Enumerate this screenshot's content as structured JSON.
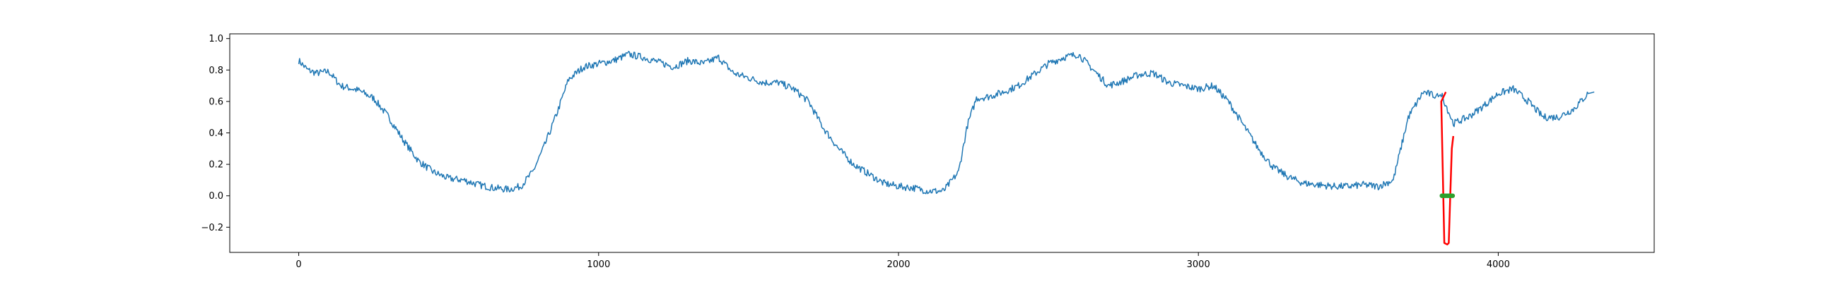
{
  "chart_data": {
    "type": "line",
    "title": "",
    "xlabel": "",
    "ylabel": "",
    "xlim": [
      -230,
      4520
    ],
    "ylim": [
      -0.36,
      1.03
    ],
    "xticks": [
      0,
      1000,
      2000,
      3000,
      4000
    ],
    "xtick_labels": [
      "0",
      "1000",
      "2000",
      "3000",
      "4000"
    ],
    "yticks": [
      -0.2,
      0.0,
      0.2,
      0.4,
      0.6,
      0.8,
      1.0
    ],
    "ytick_labels": [
      "−0.2",
      "0.0",
      "0.2",
      "0.4",
      "0.6",
      "0.8",
      "1.0"
    ],
    "grid": false,
    "legend": "none",
    "series": [
      {
        "color": "#1f77b4",
        "x": [
          0,
          30,
          60,
          100,
          140,
          200,
          250,
          300,
          350,
          400,
          450,
          500,
          550,
          600,
          650,
          700,
          740,
          780,
          820,
          860,
          900,
          950,
          1000,
          1050,
          1100,
          1150,
          1200,
          1250,
          1300,
          1350,
          1400,
          1450,
          1500,
          1550,
          1600,
          1650,
          1700,
          1750,
          1800,
          1850,
          1900,
          1950,
          2000,
          2050,
          2100,
          2150,
          2200,
          2230,
          2260,
          2300,
          2350,
          2400,
          2450,
          2500,
          2550,
          2600,
          2650,
          2700,
          2750,
          2800,
          2850,
          2900,
          2950,
          3000,
          3050,
          3100,
          3150,
          3200,
          3250,
          3300,
          3350,
          3400,
          3450,
          3500,
          3550,
          3600,
          3650,
          3700,
          3750,
          3800,
          3810,
          3850,
          3900,
          3950,
          4000,
          4050,
          4100,
          4150,
          4200,
          4250,
          4300,
          4320
        ],
        "y": [
          0.86,
          0.8,
          0.78,
          0.79,
          0.7,
          0.67,
          0.62,
          0.5,
          0.35,
          0.22,
          0.15,
          0.11,
          0.1,
          0.07,
          0.05,
          0.04,
          0.06,
          0.15,
          0.32,
          0.52,
          0.74,
          0.82,
          0.84,
          0.86,
          0.9,
          0.88,
          0.85,
          0.82,
          0.86,
          0.84,
          0.88,
          0.78,
          0.75,
          0.72,
          0.72,
          0.68,
          0.6,
          0.43,
          0.3,
          0.2,
          0.14,
          0.08,
          0.06,
          0.05,
          0.03,
          0.03,
          0.15,
          0.45,
          0.62,
          0.63,
          0.66,
          0.7,
          0.77,
          0.84,
          0.88,
          0.9,
          0.8,
          0.7,
          0.73,
          0.77,
          0.78,
          0.72,
          0.7,
          0.68,
          0.7,
          0.6,
          0.45,
          0.3,
          0.18,
          0.12,
          0.08,
          0.07,
          0.06,
          0.06,
          0.07,
          0.06,
          0.1,
          0.5,
          0.66,
          0.63,
          0.65,
          0.46,
          0.5,
          0.57,
          0.65,
          0.68,
          0.6,
          0.5,
          0.5,
          0.55,
          0.65,
          0.66
        ]
      },
      {
        "color": "#ff0000",
        "x": [
          3825,
          3810,
          3820,
          3830,
          3835,
          3840,
          3845,
          3850
        ],
        "y": [
          0.66,
          0.6,
          -0.3,
          -0.31,
          -0.3,
          0.0,
          0.3,
          0.38
        ]
      }
    ],
    "markers": {
      "color": "#2ca02c",
      "y": 0.0,
      "x_range": [
        3812,
        3848
      ]
    }
  }
}
